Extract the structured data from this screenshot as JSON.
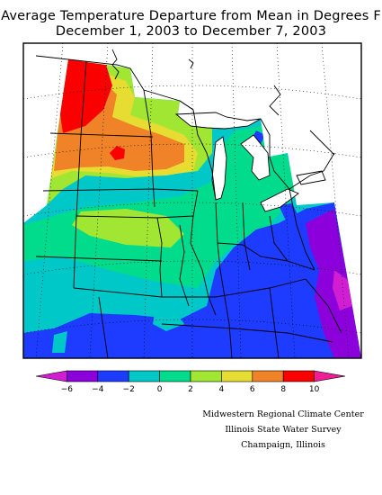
{
  "title": {
    "line1": "Average Temperature Departure from Mean in Degrees F",
    "line2": "December 1, 2003 to December 7, 2003"
  },
  "legend": {
    "ticks": [
      "-6",
      "-4",
      "-2",
      "0",
      "2",
      "4",
      "6",
      "8",
      "10"
    ],
    "colors": [
      "#d21ed2",
      "#8c00dc",
      "#1e3cff",
      "#00c8c8",
      "#00dc8c",
      "#a0e632",
      "#e6dc32",
      "#f08228",
      "#fa0000",
      "#f01e96"
    ]
  },
  "credits": {
    "line1": "Midwestern Regional Climate Center",
    "line2": "Illinois State Water Survey",
    "line3": "Champaign, Illinois"
  }
}
